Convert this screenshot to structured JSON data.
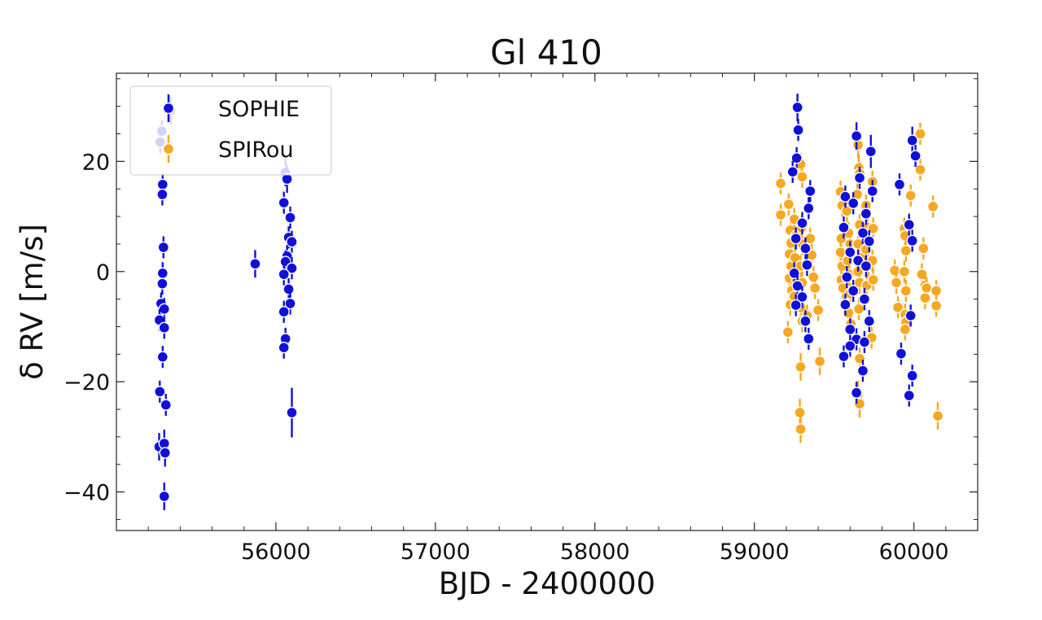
{
  "chart_data": {
    "type": "scatter",
    "title": "Gl 410",
    "xlabel": "BJD - 2400000",
    "ylabel": "δ RV [m/s]",
    "xlim": [
      55000,
      60400
    ],
    "ylim": [
      -47,
      36
    ],
    "xticks": [
      56000,
      57000,
      58000,
      59000,
      60000
    ],
    "yticks": [
      -40,
      -20,
      0,
      20
    ],
    "xtick_labels": [
      "56000",
      "57000",
      "58000",
      "59000",
      "60000"
    ],
    "ytick_labels": [
      "−40",
      "−20",
      "0",
      "20"
    ],
    "grid": false,
    "legend_position": "top-left",
    "colors": {
      "SOPHIE": "#1010d8",
      "SPIRou": "#f6a821"
    },
    "series": [
      {
        "name": "SOPHIE",
        "color": "#1010d8",
        "points": [
          {
            "x": 55340,
            "y": 29.3,
            "err": 2.5
          },
          {
            "x": 55285,
            "y": 25.5,
            "err": 2.0
          },
          {
            "x": 55275,
            "y": 23.5,
            "err": 2.0
          },
          {
            "x": 55290,
            "y": 15.8,
            "err": 2.0
          },
          {
            "x": 55288,
            "y": 14.0,
            "err": 2.0
          },
          {
            "x": 55295,
            "y": 4.4,
            "err": 2.0
          },
          {
            "x": 55290,
            "y": -0.3,
            "err": 2.0
          },
          {
            "x": 55288,
            "y": -2.2,
            "err": 2.0
          },
          {
            "x": 55280,
            "y": -5.8,
            "err": 2.0
          },
          {
            "x": 55300,
            "y": -6.8,
            "err": 2.0
          },
          {
            "x": 55270,
            "y": -8.8,
            "err": 2.0
          },
          {
            "x": 55300,
            "y": -10.2,
            "err": 2.0
          },
          {
            "x": 55290,
            "y": -15.5,
            "err": 2.0
          },
          {
            "x": 55272,
            "y": -21.8,
            "err": 2.0
          },
          {
            "x": 55310,
            "y": -24.2,
            "err": 2.0
          },
          {
            "x": 55268,
            "y": -31.8,
            "err": 2.5
          },
          {
            "x": 55300,
            "y": -31.2,
            "err": 2.5
          },
          {
            "x": 55305,
            "y": -32.9,
            "err": 2.5
          },
          {
            "x": 55300,
            "y": -40.8,
            "err": 2.5
          },
          {
            "x": 55870,
            "y": 1.4,
            "err": 2.5
          },
          {
            "x": 56060,
            "y": 18.0,
            "err": 2.5
          },
          {
            "x": 56070,
            "y": 16.8,
            "err": 2.5
          },
          {
            "x": 56050,
            "y": 12.5,
            "err": 2.0
          },
          {
            "x": 56090,
            "y": 9.8,
            "err": 2.0
          },
          {
            "x": 56080,
            "y": 6.2,
            "err": 2.0
          },
          {
            "x": 56100,
            "y": 5.4,
            "err": 2.0
          },
          {
            "x": 56070,
            "y": 2.8,
            "err": 2.0
          },
          {
            "x": 56060,
            "y": 1.8,
            "err": 2.0
          },
          {
            "x": 56100,
            "y": 0.6,
            "err": 2.0
          },
          {
            "x": 56050,
            "y": -0.5,
            "err": 2.0
          },
          {
            "x": 56080,
            "y": -3.2,
            "err": 2.0
          },
          {
            "x": 56090,
            "y": -5.8,
            "err": 2.0
          },
          {
            "x": 56050,
            "y": -7.3,
            "err": 2.0
          },
          {
            "x": 56060,
            "y": -12.2,
            "err": 2.0
          },
          {
            "x": 56050,
            "y": -13.8,
            "err": 2.0
          },
          {
            "x": 56100,
            "y": -25.6,
            "err": 4.5
          },
          {
            "x": 59270,
            "y": 29.8,
            "err": 2.5
          },
          {
            "x": 59275,
            "y": 25.7,
            "err": 2.0
          },
          {
            "x": 59265,
            "y": 20.6,
            "err": 2.0
          },
          {
            "x": 59240,
            "y": 18.1,
            "err": 2.0
          },
          {
            "x": 59350,
            "y": 14.6,
            "err": 2.0
          },
          {
            "x": 59340,
            "y": 11.5,
            "err": 2.0
          },
          {
            "x": 59300,
            "y": 8.8,
            "err": 2.0
          },
          {
            "x": 59260,
            "y": 6.0,
            "err": 2.0
          },
          {
            "x": 59320,
            "y": 4.2,
            "err": 2.0
          },
          {
            "x": 59330,
            "y": 1.2,
            "err": 2.0
          },
          {
            "x": 59250,
            "y": -0.3,
            "err": 2.0
          },
          {
            "x": 59270,
            "y": -2.6,
            "err": 2.0
          },
          {
            "x": 59300,
            "y": -4.6,
            "err": 2.0
          },
          {
            "x": 59260,
            "y": -6.1,
            "err": 2.0
          },
          {
            "x": 59320,
            "y": -9.0,
            "err": 2.0
          },
          {
            "x": 59340,
            "y": -12.2,
            "err": 2.0
          },
          {
            "x": 59640,
            "y": 24.6,
            "err": 2.5
          },
          {
            "x": 59730,
            "y": 21.8,
            "err": 3.0
          },
          {
            "x": 59660,
            "y": 17.0,
            "err": 2.0
          },
          {
            "x": 59570,
            "y": 13.6,
            "err": 2.0
          },
          {
            "x": 59740,
            "y": 14.6,
            "err": 2.0
          },
          {
            "x": 59620,
            "y": 12.4,
            "err": 2.0
          },
          {
            "x": 59700,
            "y": 10.5,
            "err": 2.0
          },
          {
            "x": 59560,
            "y": 8.0,
            "err": 2.0
          },
          {
            "x": 59680,
            "y": 7.0,
            "err": 2.0
          },
          {
            "x": 59720,
            "y": 5.5,
            "err": 2.0
          },
          {
            "x": 59600,
            "y": 3.5,
            "err": 2.0
          },
          {
            "x": 59650,
            "y": 2.0,
            "err": 2.0
          },
          {
            "x": 59700,
            "y": 1.0,
            "err": 2.0
          },
          {
            "x": 59580,
            "y": -1.0,
            "err": 2.0
          },
          {
            "x": 59620,
            "y": -3.5,
            "err": 2.0
          },
          {
            "x": 59690,
            "y": -5.0,
            "err": 2.0
          },
          {
            "x": 59570,
            "y": -6.0,
            "err": 2.0
          },
          {
            "x": 59720,
            "y": -9.0,
            "err": 2.0
          },
          {
            "x": 59600,
            "y": -10.5,
            "err": 2.0
          },
          {
            "x": 59640,
            "y": -12.3,
            "err": 2.0
          },
          {
            "x": 59690,
            "y": -12.8,
            "err": 2.0
          },
          {
            "x": 59600,
            "y": -13.5,
            "err": 2.0
          },
          {
            "x": 59560,
            "y": -15.4,
            "err": 2.0
          },
          {
            "x": 59680,
            "y": -18.0,
            "err": 2.0
          },
          {
            "x": 59640,
            "y": -22.0,
            "err": 2.0
          },
          {
            "x": 59990,
            "y": 23.8,
            "err": 2.5
          },
          {
            "x": 60010,
            "y": 21.0,
            "err": 2.0
          },
          {
            "x": 59910,
            "y": 15.8,
            "err": 2.0
          },
          {
            "x": 59970,
            "y": 8.5,
            "err": 2.0
          },
          {
            "x": 59990,
            "y": 5.6,
            "err": 2.0
          },
          {
            "x": 59980,
            "y": -8.0,
            "err": 2.0
          },
          {
            "x": 59920,
            "y": -14.9,
            "err": 2.0
          },
          {
            "x": 59990,
            "y": -18.9,
            "err": 2.0
          },
          {
            "x": 59970,
            "y": -22.5,
            "err": 2.0
          }
        ]
      },
      {
        "name": "SPIRou",
        "color": "#f6a821",
        "points": [
          {
            "x": 59165,
            "y": 16.0,
            "err": 2.0
          },
          {
            "x": 59165,
            "y": 10.3,
            "err": 2.0
          },
          {
            "x": 59215,
            "y": 12.2,
            "err": 2.0
          },
          {
            "x": 59225,
            "y": 7.5,
            "err": 2.0
          },
          {
            "x": 59230,
            "y": 5.2,
            "err": 2.0
          },
          {
            "x": 59220,
            "y": 3.2,
            "err": 2.0
          },
          {
            "x": 59230,
            "y": 1.0,
            "err": 2.0
          },
          {
            "x": 59220,
            "y": -1.2,
            "err": 2.0
          },
          {
            "x": 59235,
            "y": -3.4,
            "err": 2.0
          },
          {
            "x": 59225,
            "y": -6.0,
            "err": 2.0
          },
          {
            "x": 59210,
            "y": -11.0,
            "err": 2.0
          },
          {
            "x": 59250,
            "y": 9.5,
            "err": 2.0
          },
          {
            "x": 59260,
            "y": 6.5,
            "err": 2.0
          },
          {
            "x": 59255,
            "y": 2.5,
            "err": 2.0
          },
          {
            "x": 59265,
            "y": -1.5,
            "err": 2.0
          },
          {
            "x": 59250,
            "y": -4.5,
            "err": 2.0
          },
          {
            "x": 59290,
            "y": 19.5,
            "err": 2.0
          },
          {
            "x": 59300,
            "y": 17.2,
            "err": 2.0
          },
          {
            "x": 59295,
            "y": 8.0,
            "err": 2.0
          },
          {
            "x": 59300,
            "y": 5.0,
            "err": 2.0
          },
          {
            "x": 59290,
            "y": 1.0,
            "err": 2.0
          },
          {
            "x": 59300,
            "y": -2.0,
            "err": 2.0
          },
          {
            "x": 59290,
            "y": -6.5,
            "err": 2.0
          },
          {
            "x": 59300,
            "y": -9.0,
            "err": 2.0
          },
          {
            "x": 59290,
            "y": -17.3,
            "err": 2.5
          },
          {
            "x": 59285,
            "y": -25.6,
            "err": 2.5
          },
          {
            "x": 59290,
            "y": -28.6,
            "err": 2.5
          },
          {
            "x": 59330,
            "y": -8.0,
            "err": 2.0
          },
          {
            "x": 59350,
            "y": 6.0,
            "err": 2.0
          },
          {
            "x": 59360,
            "y": 3.0,
            "err": 2.0
          },
          {
            "x": 59370,
            "y": -1.0,
            "err": 2.0
          },
          {
            "x": 59380,
            "y": -3.0,
            "err": 2.0
          },
          {
            "x": 59400,
            "y": -7.0,
            "err": 2.0
          },
          {
            "x": 59410,
            "y": -16.3,
            "err": 2.5
          },
          {
            "x": 59540,
            "y": 14.5,
            "err": 2.0
          },
          {
            "x": 59550,
            "y": 12.0,
            "err": 2.0
          },
          {
            "x": 59545,
            "y": 6.0,
            "err": 2.0
          },
          {
            "x": 59540,
            "y": 3.5,
            "err": 2.0
          },
          {
            "x": 59550,
            "y": 1.0,
            "err": 2.0
          },
          {
            "x": 59545,
            "y": -1.5,
            "err": 2.0
          },
          {
            "x": 59555,
            "y": -3.0,
            "err": 2.0
          },
          {
            "x": 59580,
            "y": 11.0,
            "err": 2.0
          },
          {
            "x": 59590,
            "y": 7.0,
            "err": 2.0
          },
          {
            "x": 59600,
            "y": 5.0,
            "err": 2.0
          },
          {
            "x": 59585,
            "y": 2.0,
            "err": 2.0
          },
          {
            "x": 59595,
            "y": -0.5,
            "err": 2.0
          },
          {
            "x": 59600,
            "y": -4.0,
            "err": 2.0
          },
          {
            "x": 59590,
            "y": -7.5,
            "err": 2.0
          },
          {
            "x": 59605,
            "y": -9.5,
            "err": 2.0
          },
          {
            "x": 59650,
            "y": 23.0,
            "err": 2.5
          },
          {
            "x": 59655,
            "y": 18.8,
            "err": 2.5
          },
          {
            "x": 59660,
            "y": 17.8,
            "err": 2.0
          },
          {
            "x": 59645,
            "y": 14.0,
            "err": 2.0
          },
          {
            "x": 59660,
            "y": 8.5,
            "err": 2.0
          },
          {
            "x": 59650,
            "y": 5.0,
            "err": 2.0
          },
          {
            "x": 59665,
            "y": 2.5,
            "err": 2.0
          },
          {
            "x": 59650,
            "y": 0.0,
            "err": 2.0
          },
          {
            "x": 59660,
            "y": -2.0,
            "err": 2.0
          },
          {
            "x": 59655,
            "y": -6.8,
            "err": 2.0
          },
          {
            "x": 59660,
            "y": -15.8,
            "err": 2.0
          },
          {
            "x": 59650,
            "y": -22.3,
            "err": 2.5
          },
          {
            "x": 59660,
            "y": -24.0,
            "err": 2.5
          },
          {
            "x": 59700,
            "y": 12.0,
            "err": 2.0
          },
          {
            "x": 59710,
            "y": 8.0,
            "err": 2.0
          },
          {
            "x": 59700,
            "y": 4.0,
            "err": 2.0
          },
          {
            "x": 59715,
            "y": 1.0,
            "err": 2.0
          },
          {
            "x": 59705,
            "y": -2.5,
            "err": 2.0
          },
          {
            "x": 59740,
            "y": 16.3,
            "err": 2.0
          },
          {
            "x": 59745,
            "y": 7.8,
            "err": 2.0
          },
          {
            "x": 59740,
            "y": 2.0,
            "err": 2.0
          },
          {
            "x": 59745,
            "y": -1.5,
            "err": 2.0
          },
          {
            "x": 59735,
            "y": -12.0,
            "err": 2.0
          },
          {
            "x": 59880,
            "y": 0.2,
            "err": 2.0
          },
          {
            "x": 59890,
            "y": -2.0,
            "err": 2.0
          },
          {
            "x": 59900,
            "y": -6.5,
            "err": 2.0
          },
          {
            "x": 59940,
            "y": 7.8,
            "err": 2.0
          },
          {
            "x": 59945,
            "y": 6.5,
            "err": 2.0
          },
          {
            "x": 59950,
            "y": 3.8,
            "err": 2.0
          },
          {
            "x": 59940,
            "y": 0.0,
            "err": 2.0
          },
          {
            "x": 59950,
            "y": -3.5,
            "err": 2.0
          },
          {
            "x": 59945,
            "y": -7.8,
            "err": 2.0
          },
          {
            "x": 59950,
            "y": -9.2,
            "err": 2.0
          },
          {
            "x": 59945,
            "y": -10.5,
            "err": 2.0
          },
          {
            "x": 59980,
            "y": 13.8,
            "err": 2.0
          },
          {
            "x": 60040,
            "y": 25.0,
            "err": 2.0
          },
          {
            "x": 60040,
            "y": 18.5,
            "err": 2.0
          },
          {
            "x": 60060,
            "y": 4.2,
            "err": 2.0
          },
          {
            "x": 60050,
            "y": -0.5,
            "err": 2.0
          },
          {
            "x": 60070,
            "y": -2.5,
            "err": 2.0
          },
          {
            "x": 60080,
            "y": -3.0,
            "err": 2.0
          },
          {
            "x": 60070,
            "y": -4.8,
            "err": 2.0
          },
          {
            "x": 60120,
            "y": 11.8,
            "err": 2.0
          },
          {
            "x": 60140,
            "y": -3.5,
            "err": 2.0
          },
          {
            "x": 60140,
            "y": -6.2,
            "err": 2.0
          },
          {
            "x": 60150,
            "y": -26.2,
            "err": 2.5
          }
        ]
      }
    ]
  }
}
